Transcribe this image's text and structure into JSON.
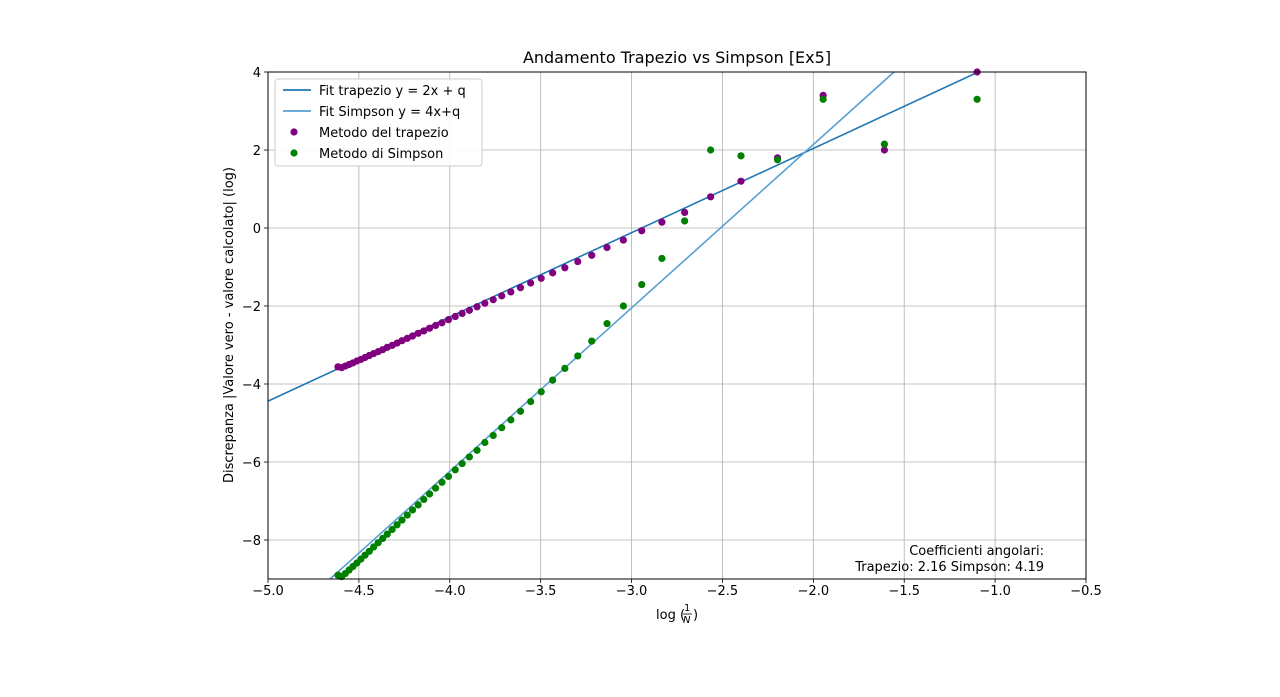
{
  "chart_data": {
    "type": "scatter",
    "title": "Andamento Trapezio vs Simpson [Ex5]",
    "ylabel": "Discrepanza |Valore vero - valore calcolato| (log)",
    "xlabel": "log(1/N)",
    "xlim": [
      -5.0,
      -0.5
    ],
    "ylim": [
      -9,
      4
    ],
    "grid": true,
    "legend_position": "top-left",
    "x_ticks": [
      -5.0,
      -4.5,
      -4.0,
      -3.5,
      -3.0,
      -2.5,
      -2.0,
      -1.5,
      -1.0,
      -0.5
    ],
    "x_tick_labels": [
      "−5.0",
      "−4.5",
      "−4.0",
      "−3.5",
      "−3.0",
      "−2.5",
      "−2.0",
      "−1.5",
      "−1.0",
      "−0.5"
    ],
    "y_ticks": [
      4,
      2,
      0,
      -2,
      -4,
      -6,
      -8
    ],
    "y_tick_labels": [
      "4",
      "2",
      "0",
      "−2",
      "−4",
      "−6",
      "−8"
    ],
    "annotation_lines": [
      "Coefficienti angolari:",
      "Trapezio: 2.16 Simpson: 4.19"
    ],
    "fit_lines": [
      {
        "name": "Fit trapezio y = 2x + q",
        "color": "#1f77b4",
        "slope": 2.16,
        "intercept": 6.36
      },
      {
        "name": "Fit Simpson y = 4x+q",
        "color": "#56a0d3",
        "slope": 4.19,
        "intercept": 10.52
      }
    ],
    "series": [
      {
        "name": "Metodo del trapezio",
        "color": "#800080",
        "x": [
          -1.099,
          -1.609,
          -1.946,
          -2.197,
          -2.398,
          -2.565,
          -2.708,
          -2.833,
          -2.944,
          -3.045,
          -3.135,
          -3.219,
          -3.296,
          -3.367,
          -3.434,
          -3.497,
          -3.555,
          -3.611,
          -3.664,
          -3.714,
          -3.761,
          -3.807,
          -3.85,
          -3.892,
          -3.932,
          -3.97,
          -4.007,
          -4.043,
          -4.078,
          -4.111,
          -4.143,
          -4.174,
          -4.205,
          -4.234,
          -4.263,
          -4.29,
          -4.317,
          -4.344,
          -4.369,
          -4.394,
          -4.419,
          -4.443,
          -4.466,
          -4.489,
          -4.511,
          -4.533,
          -4.554,
          -4.575,
          -4.595,
          -4.615
        ],
        "y": [
          4.0,
          2.0,
          3.4,
          1.8,
          1.2,
          0.8,
          0.4,
          0.15,
          -0.07,
          -0.31,
          -0.5,
          -0.7,
          -0.86,
          -1.02,
          -1.15,
          -1.29,
          -1.41,
          -1.53,
          -1.64,
          -1.74,
          -1.84,
          -1.93,
          -2.02,
          -2.11,
          -2.19,
          -2.27,
          -2.35,
          -2.43,
          -2.5,
          -2.57,
          -2.64,
          -2.7,
          -2.77,
          -2.83,
          -2.89,
          -2.95,
          -3.01,
          -3.06,
          -3.12,
          -3.17,
          -3.22,
          -3.27,
          -3.32,
          -3.37,
          -3.41,
          -3.46,
          -3.5,
          -3.54,
          -3.58,
          -3.56
        ]
      },
      {
        "name": "Metodo di Simpson",
        "color": "#008000",
        "x": [
          -1.099,
          -1.609,
          -1.946,
          -2.197,
          -2.398,
          -2.565,
          -2.708,
          -2.833,
          -2.944,
          -3.045,
          -3.135,
          -3.219,
          -3.296,
          -3.367,
          -3.434,
          -3.497,
          -3.555,
          -3.611,
          -3.664,
          -3.714,
          -3.761,
          -3.807,
          -3.85,
          -3.892,
          -3.932,
          -3.97,
          -4.007,
          -4.043,
          -4.078,
          -4.111,
          -4.143,
          -4.174,
          -4.205,
          -4.234,
          -4.263,
          -4.29,
          -4.317,
          -4.344,
          -4.369,
          -4.394,
          -4.419,
          -4.443,
          -4.466,
          -4.489,
          -4.511,
          -4.533,
          -4.554,
          -4.575,
          -4.595,
          -4.615
        ],
        "y": [
          3.3,
          2.15,
          3.3,
          1.75,
          1.85,
          2.0,
          0.18,
          -0.78,
          -1.45,
          -2.0,
          -2.45,
          -2.9,
          -3.28,
          -3.6,
          -3.9,
          -4.2,
          -4.45,
          -4.7,
          -4.92,
          -5.12,
          -5.32,
          -5.5,
          -5.7,
          -5.87,
          -6.04,
          -6.2,
          -6.37,
          -6.52,
          -6.67,
          -6.82,
          -6.96,
          -7.1,
          -7.23,
          -7.36,
          -7.49,
          -7.61,
          -7.73,
          -7.85,
          -7.96,
          -8.07,
          -8.18,
          -8.29,
          -8.39,
          -8.49,
          -8.59,
          -8.68,
          -8.77,
          -8.86,
          -8.94,
          -8.9
        ]
      }
    ]
  }
}
